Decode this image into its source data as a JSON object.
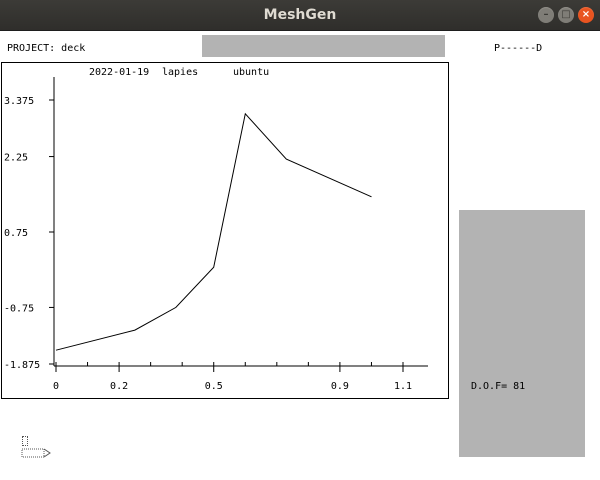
{
  "window": {
    "title": "MeshGen",
    "controls": {
      "minimize": "–",
      "maximize": "□",
      "close": "×"
    }
  },
  "header": {
    "project_label": "PROJECT: deck",
    "status_label": "P------D"
  },
  "plot_header": {
    "date": "2022-01-19",
    "user": "lapies",
    "host": "ubuntu"
  },
  "side_panel": {
    "dof_label": "D.O.F= 81"
  },
  "colors": {
    "titlebar": "#3c3b37",
    "close_button": "#e95420",
    "panel_gray": "#b3b3b3"
  },
  "chart_data": {
    "type": "line",
    "x_ticks": [
      "0",
      "0.2",
      "0.5",
      "0.9",
      "1.1"
    ],
    "y_ticks": [
      "3.375",
      "2.25",
      "0.75",
      "-0.75",
      "-1.875"
    ],
    "xlim": [
      0,
      1.18
    ],
    "ylim": [
      -1.875,
      3.9
    ],
    "grid": false,
    "series": [
      {
        "x": [
          0.0,
          0.25,
          0.38,
          0.5,
          0.6,
          0.73,
          1.0
        ],
        "y": [
          -1.6,
          -1.2,
          -0.75,
          0.05,
          3.1,
          2.2,
          1.45
        ]
      }
    ]
  }
}
